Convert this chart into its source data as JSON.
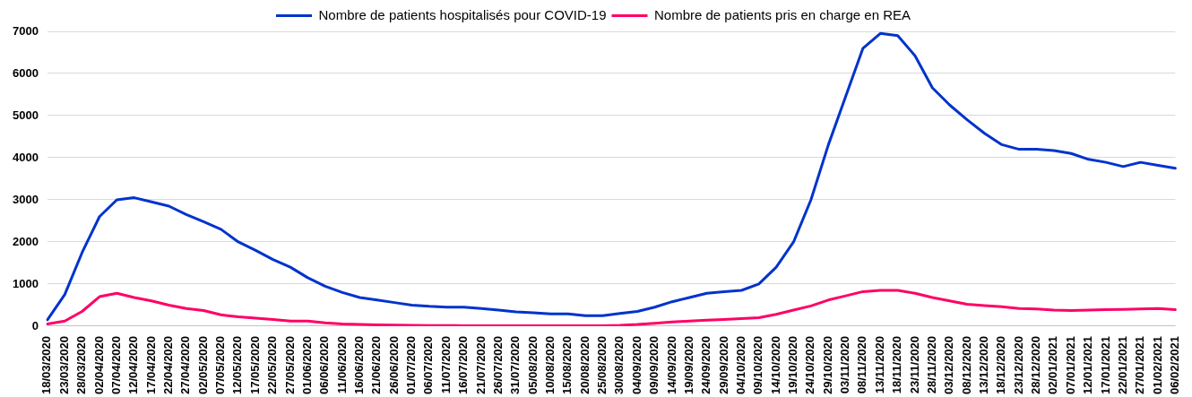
{
  "chart_data": {
    "type": "line",
    "categories": [
      "18/03/2020",
      "23/03/2020",
      "28/03/2020",
      "02/04/2020",
      "07/04/2020",
      "12/04/2020",
      "17/04/2020",
      "22/04/2020",
      "27/04/2020",
      "02/05/2020",
      "07/05/2020",
      "12/05/2020",
      "17/05/2020",
      "22/05/2020",
      "27/05/2020",
      "01/06/2020",
      "06/06/2020",
      "11/06/2020",
      "16/06/2020",
      "21/06/2020",
      "26/06/2020",
      "01/07/2020",
      "06/07/2020",
      "11/07/2020",
      "16/07/2020",
      "21/07/2020",
      "26/07/2020",
      "31/07/2020",
      "05/08/2020",
      "10/08/2020",
      "15/08/2020",
      "20/08/2020",
      "25/08/2020",
      "30/08/2020",
      "04/09/2020",
      "09/09/2020",
      "14/09/2020",
      "19/09/2020",
      "24/09/2020",
      "29/09/2020",
      "04/10/2020",
      "09/10/2020",
      "14/10/2020",
      "19/10/2020",
      "24/10/2020",
      "29/10/2020",
      "03/11/2020",
      "08/11/2020",
      "13/11/2020",
      "18/11/2020",
      "23/11/2020",
      "28/11/2020",
      "03/12/2020",
      "08/12/2020",
      "13/12/2020",
      "18/12/2020",
      "23/12/2020",
      "28/12/2020",
      "02/01/2021",
      "07/01/2021",
      "12/01/2021",
      "17/01/2021",
      "22/01/2021",
      "27/01/2021",
      "01/02/2021",
      "06/02/2021"
    ],
    "series": [
      {
        "name": "Nombre de patients hospitalisés pour COVID-19",
        "color": "#0033cc",
        "values": [
          150,
          750,
          1750,
          2600,
          3000,
          3050,
          2950,
          2850,
          2650,
          2480,
          2300,
          2000,
          1800,
          1580,
          1400,
          1150,
          950,
          800,
          680,
          620,
          560,
          500,
          470,
          450,
          450,
          420,
          380,
          340,
          320,
          290,
          290,
          250,
          250,
          300,
          350,
          450,
          580,
          680,
          780,
          820,
          850,
          1000,
          1400,
          2000,
          3000,
          4300,
          5450,
          6600,
          6950,
          6900,
          6420,
          5660,
          5250,
          4900,
          4580,
          4310,
          4200,
          4200,
          4170,
          4100,
          3960,
          3890,
          3790,
          3890,
          3820,
          3750
        ]
      },
      {
        "name": "Nombre de patients pris en charge en REA",
        "color": "#ff0066",
        "values": [
          50,
          120,
          350,
          700,
          780,
          680,
          600,
          500,
          420,
          370,
          270,
          220,
          190,
          160,
          120,
          120,
          80,
          50,
          40,
          30,
          25,
          20,
          15,
          15,
          10,
          10,
          10,
          10,
          10,
          10,
          10,
          10,
          10,
          20,
          40,
          70,
          100,
          120,
          140,
          160,
          180,
          200,
          280,
          380,
          480,
          620,
          720,
          820,
          850,
          850,
          780,
          680,
          600,
          520,
          490,
          460,
          420,
          410,
          380,
          370,
          380,
          390,
          400,
          410,
          420,
          390
        ]
      }
    ],
    "ylim": [
      0,
      7000
    ],
    "yticks": [
      0,
      1000,
      2000,
      3000,
      4000,
      5000,
      6000,
      7000
    ],
    "grid": "y",
    "legend": "top",
    "marker": "none",
    "line_style": "solid"
  }
}
